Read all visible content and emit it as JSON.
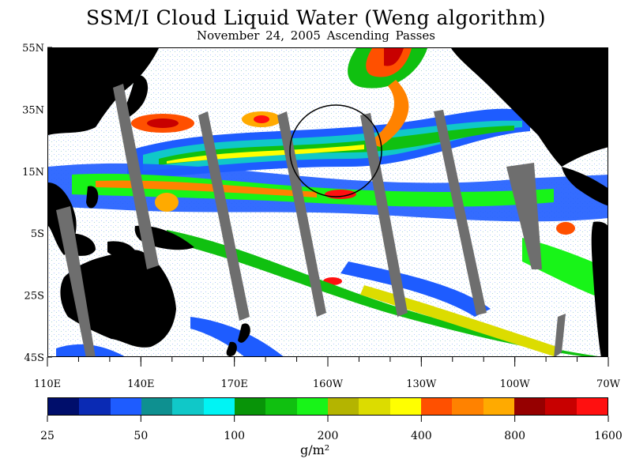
{
  "title": "SSM/I Cloud Liquid Water (Weng algorithm)",
  "subtitle": "November 24, 2005  Ascending Passes",
  "lat_labels": [
    "55N",
    "35N",
    "15N",
    "5S",
    "25S",
    "45S"
  ],
  "lon_labels": [
    "110E",
    "140E",
    "170E",
    "160W",
    "130W",
    "100W",
    "70W"
  ],
  "colorbar": {
    "colors": [
      "#000e6b",
      "#0a2ab4",
      "#1e5cff",
      "#0e9090",
      "#10c8c8",
      "#00f4f4",
      "#089408",
      "#10c010",
      "#18f418",
      "#b4b400",
      "#dcdc00",
      "#ffff00",
      "#ff5000",
      "#ff8200",
      "#ffaa00",
      "#960000",
      "#c80000",
      "#ff1010"
    ],
    "tick_labels": [
      "25",
      "50",
      "100",
      "200",
      "400",
      "800",
      "1600"
    ],
    "units": "g/m²"
  },
  "land_color": "#000000",
  "missing_swath_color": "#6e6e6e",
  "ocean_clear_color": "#ffffff"
}
